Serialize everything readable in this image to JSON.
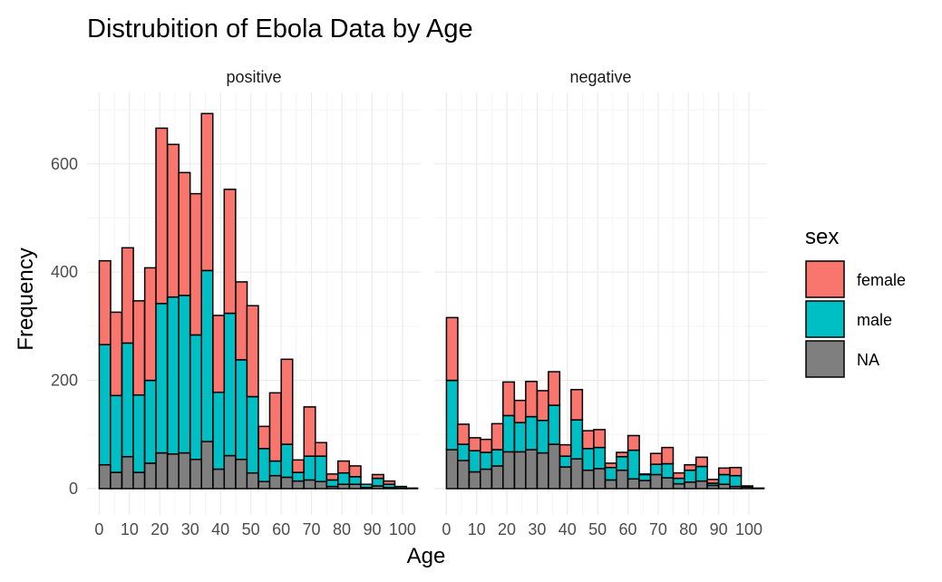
{
  "chart_data": {
    "type": "bar",
    "stacked": true,
    "title": "Distrubition of Ebola Data by Age",
    "xlabel": "Age",
    "ylabel": "Frequency",
    "x_ticks": [
      "0",
      "10",
      "20",
      "30",
      "40",
      "50",
      "60",
      "70",
      "80",
      "90",
      "100"
    ],
    "y_ticks": [
      "0",
      "200",
      "400",
      "600"
    ],
    "xlim": [
      -4,
      106
    ],
    "ylim": [
      0,
      705
    ],
    "grid": true,
    "bin_width": 3.75,
    "legend": {
      "title": "sex",
      "position": "right",
      "entries": [
        {
          "name": "female",
          "color": "#F8766D"
        },
        {
          "name": "male",
          "color": "#00BFC4"
        },
        {
          "name": "NA",
          "color": "#7F7F7F"
        }
      ]
    },
    "panels": [
      {
        "label": "positive",
        "bins": [
          {
            "x": 1.9,
            "NA": 44,
            "male": 222,
            "female": 155
          },
          {
            "x": 5.6,
            "NA": 30,
            "male": 142,
            "female": 154
          },
          {
            "x": 9.4,
            "NA": 59,
            "male": 210,
            "female": 176
          },
          {
            "x": 13.1,
            "NA": 30,
            "male": 143,
            "female": 174
          },
          {
            "x": 16.9,
            "NA": 47,
            "male": 153,
            "female": 208
          },
          {
            "x": 20.6,
            "NA": 66,
            "male": 276,
            "female": 324
          },
          {
            "x": 24.4,
            "NA": 64,
            "male": 290,
            "female": 282
          },
          {
            "x": 28.1,
            "NA": 66,
            "male": 291,
            "female": 227
          },
          {
            "x": 31.9,
            "NA": 54,
            "male": 230,
            "female": 261
          },
          {
            "x": 35.6,
            "NA": 87,
            "male": 316,
            "female": 290
          },
          {
            "x": 39.4,
            "NA": 36,
            "male": 142,
            "female": 142
          },
          {
            "x": 43.1,
            "NA": 61,
            "male": 263,
            "female": 229
          },
          {
            "x": 46.9,
            "NA": 54,
            "male": 184,
            "female": 144
          },
          {
            "x": 50.6,
            "NA": 29,
            "male": 141,
            "female": 168
          },
          {
            "x": 54.4,
            "NA": 13,
            "male": 61,
            "female": 41
          },
          {
            "x": 58.1,
            "NA": 24,
            "male": 27,
            "female": 126
          },
          {
            "x": 61.9,
            "NA": 21,
            "male": 61,
            "female": 157
          },
          {
            "x": 65.6,
            "NA": 14,
            "male": 16,
            "female": 23
          },
          {
            "x": 69.4,
            "NA": 16,
            "male": 44,
            "female": 91
          },
          {
            "x": 73.1,
            "NA": 13,
            "male": 47,
            "female": 25
          },
          {
            "x": 76.9,
            "NA": 4,
            "male": 12,
            "female": 11
          },
          {
            "x": 80.6,
            "NA": 8,
            "male": 21,
            "female": 22
          },
          {
            "x": 84.4,
            "NA": 8,
            "male": 14,
            "female": 20
          },
          {
            "x": 88.1,
            "NA": 2,
            "male": 6,
            "female": 0
          },
          {
            "x": 91.9,
            "NA": 5,
            "male": 14,
            "female": 7
          },
          {
            "x": 95.6,
            "NA": 2,
            "male": 6,
            "female": 6
          },
          {
            "x": 99.4,
            "NA": 1,
            "male": 3,
            "female": 0
          },
          {
            "x": 103.1,
            "NA": 0,
            "male": 1,
            "female": 0
          }
        ]
      },
      {
        "label": "negative",
        "bins": [
          {
            "x": 1.9,
            "NA": 72,
            "male": 128,
            "female": 116
          },
          {
            "x": 5.6,
            "NA": 52,
            "male": 30,
            "female": 37
          },
          {
            "x": 9.4,
            "NA": 31,
            "male": 39,
            "female": 24
          },
          {
            "x": 13.1,
            "NA": 36,
            "male": 31,
            "female": 24
          },
          {
            "x": 16.9,
            "NA": 42,
            "male": 30,
            "female": 48
          },
          {
            "x": 20.6,
            "NA": 68,
            "male": 67,
            "female": 62
          },
          {
            "x": 24.4,
            "NA": 68,
            "male": 54,
            "female": 41
          },
          {
            "x": 28.1,
            "NA": 72,
            "male": 61,
            "female": 65
          },
          {
            "x": 31.9,
            "NA": 66,
            "male": 60,
            "female": 55
          },
          {
            "x": 35.6,
            "NA": 82,
            "male": 72,
            "female": 62
          },
          {
            "x": 39.4,
            "NA": 40,
            "male": 20,
            "female": 21
          },
          {
            "x": 43.1,
            "NA": 55,
            "male": 72,
            "female": 56
          },
          {
            "x": 46.9,
            "NA": 34,
            "male": 40,
            "female": 33
          },
          {
            "x": 50.6,
            "NA": 37,
            "male": 39,
            "female": 33
          },
          {
            "x": 54.4,
            "NA": 16,
            "male": 23,
            "female": 8
          },
          {
            "x": 58.1,
            "NA": 34,
            "male": 25,
            "female": 8
          },
          {
            "x": 61.9,
            "NA": 18,
            "male": 53,
            "female": 27
          },
          {
            "x": 65.6,
            "NA": 15,
            "male": 11,
            "female": 1
          },
          {
            "x": 69.4,
            "NA": 26,
            "male": 19,
            "female": 20
          },
          {
            "x": 73.1,
            "NA": 20,
            "male": 26,
            "female": 30
          },
          {
            "x": 76.9,
            "NA": 9,
            "male": 10,
            "female": 10
          },
          {
            "x": 80.6,
            "NA": 12,
            "male": 22,
            "female": 10
          },
          {
            "x": 84.4,
            "NA": 14,
            "male": 27,
            "female": 17
          },
          {
            "x": 88.1,
            "NA": 6,
            "male": 4,
            "female": 7
          },
          {
            "x": 91.9,
            "NA": 8,
            "male": 18,
            "female": 12
          },
          {
            "x": 95.6,
            "NA": 4,
            "male": 20,
            "female": 15
          },
          {
            "x": 99.4,
            "NA": 3,
            "male": 2,
            "female": 0
          },
          {
            "x": 103.1,
            "NA": 1,
            "male": 0,
            "female": 0
          }
        ]
      }
    ]
  }
}
